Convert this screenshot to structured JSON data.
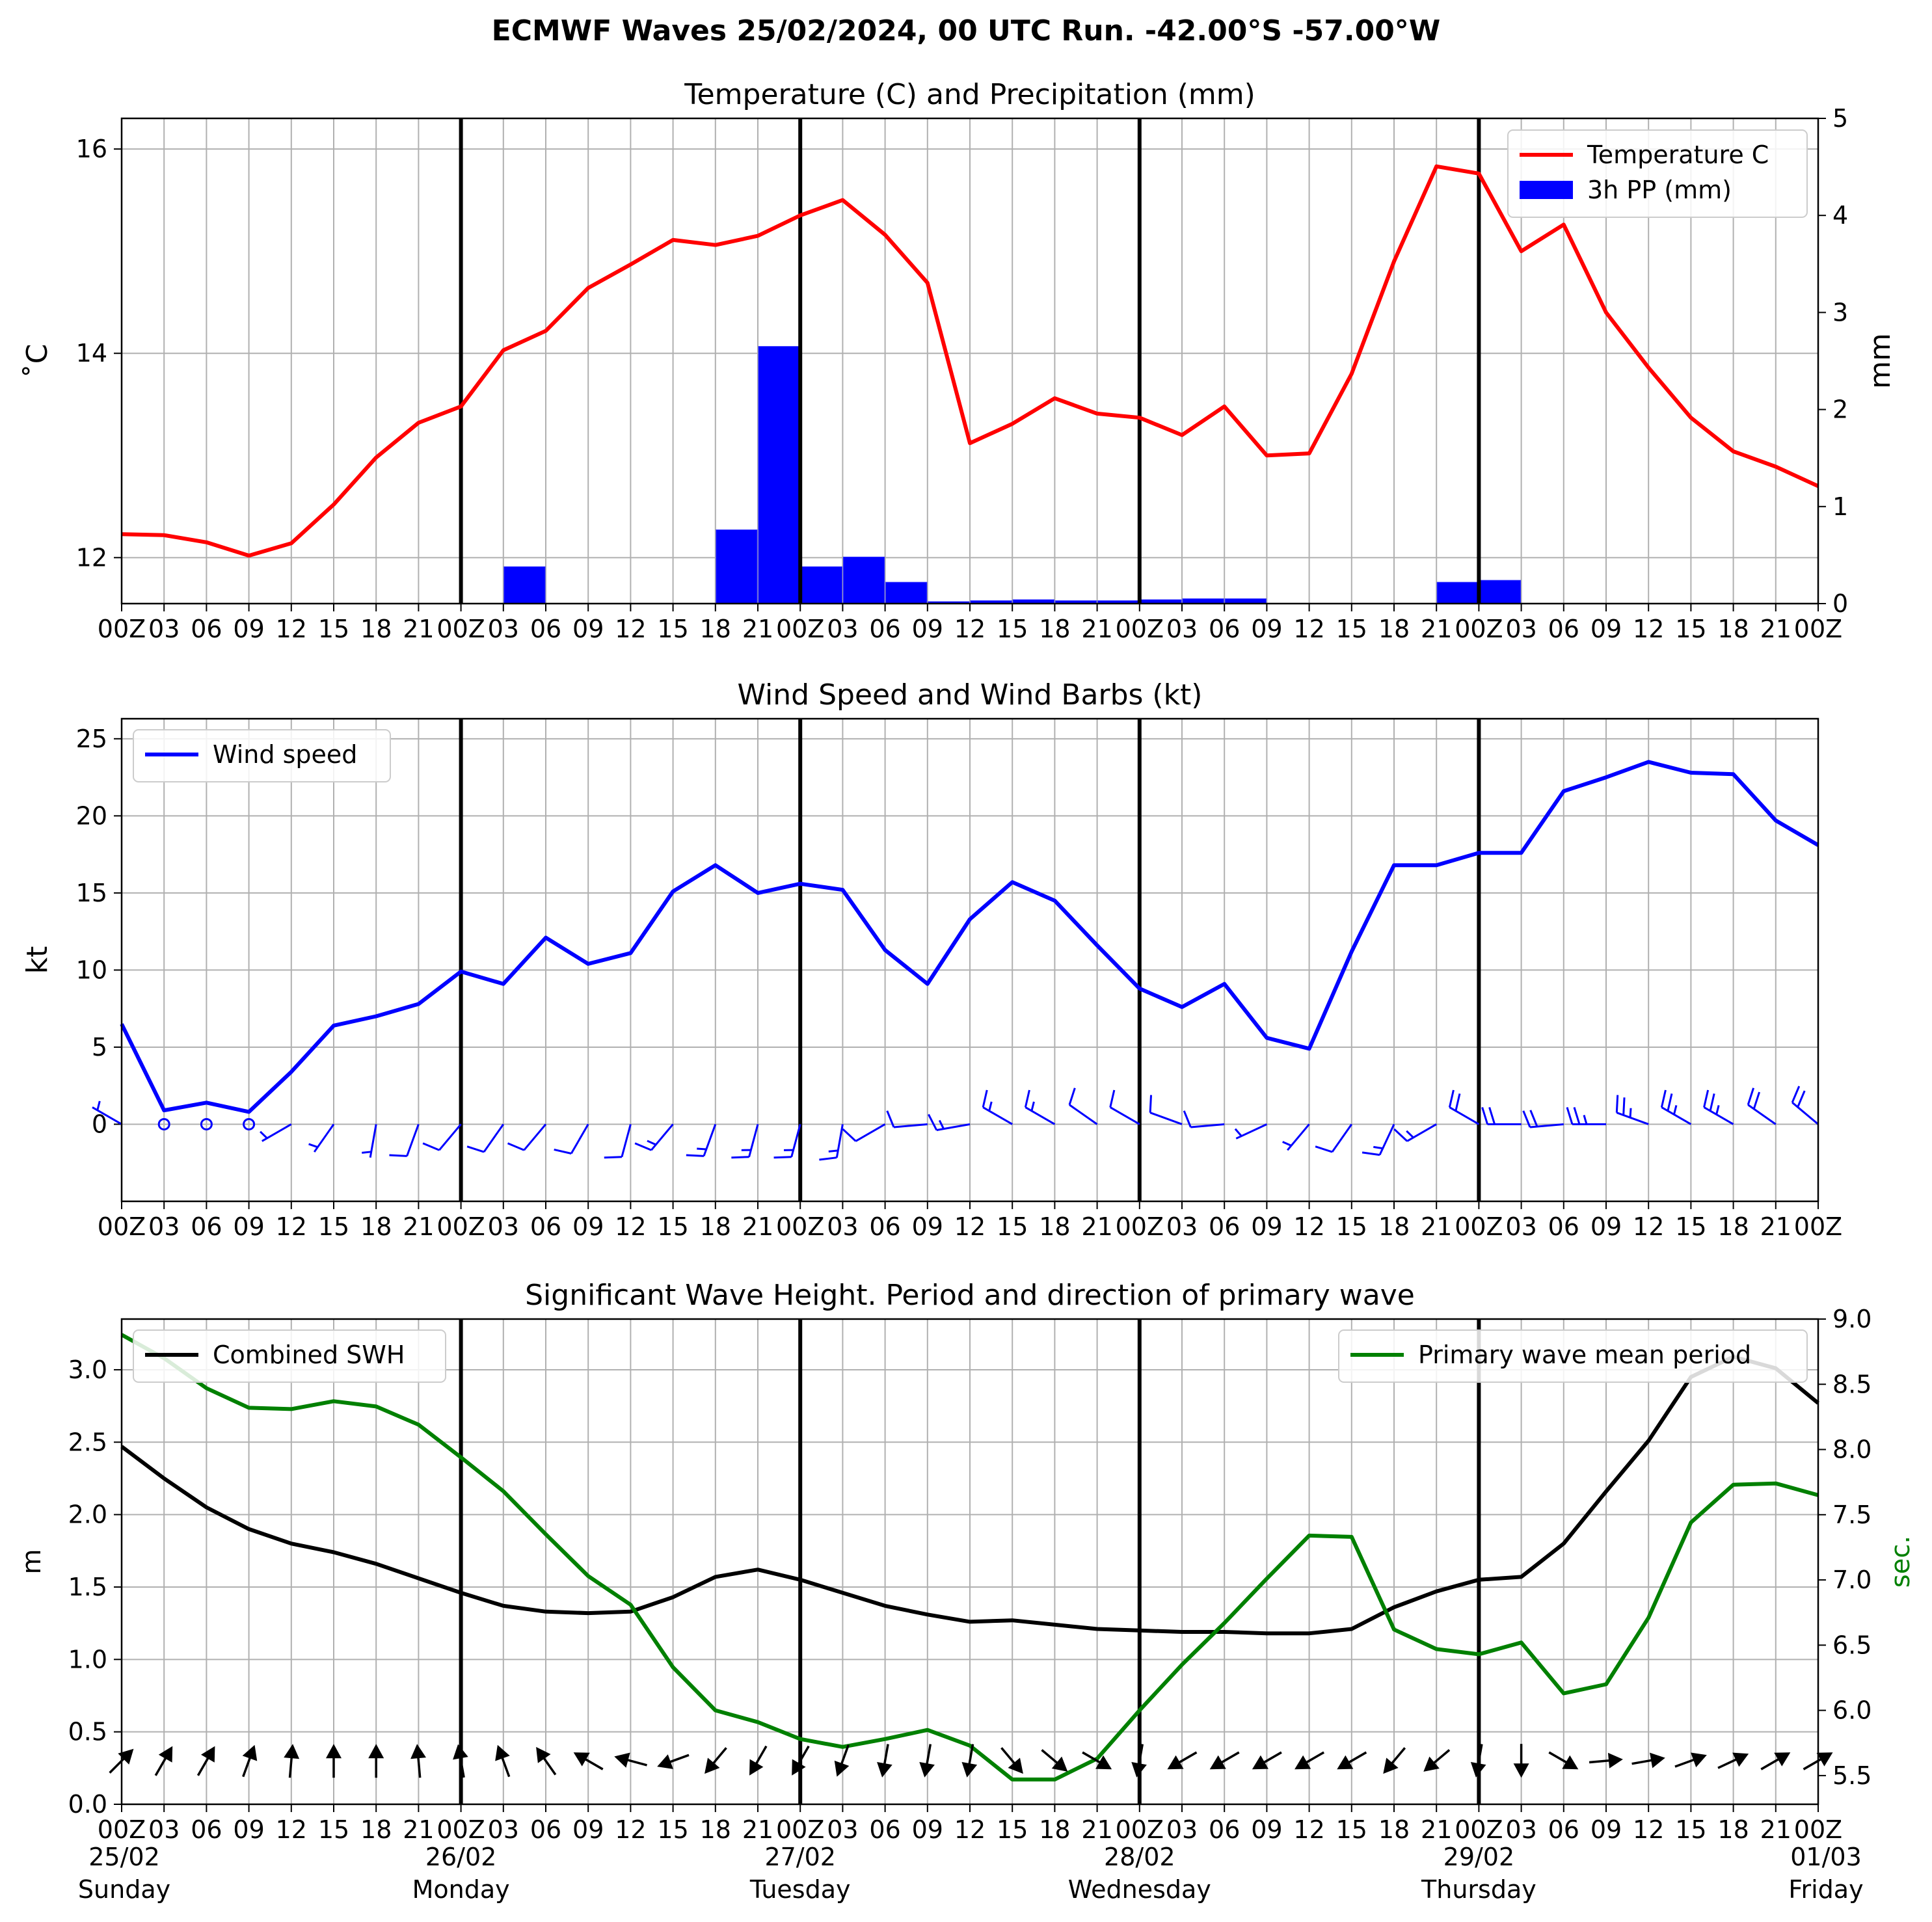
{
  "header": {
    "title": "ECMWF Waves 25/02/2024, 00 UTC Run. -42.00°S -57.00°W"
  },
  "colors": {
    "temperature": "#ff0000",
    "precipitation": "#0000ff",
    "wind": "#0000ff",
    "swh": "#000000",
    "period": "#008000",
    "grid": "#b0b0b0",
    "day_line": "#000000"
  },
  "time_axis": {
    "tick_labels": [
      "00Z",
      "03",
      "06",
      "09",
      "12",
      "15",
      "18",
      "21",
      "00Z",
      "03",
      "06",
      "09",
      "12",
      "15",
      "18",
      "21",
      "00Z",
      "03",
      "06",
      "09",
      "12",
      "15",
      "18",
      "21",
      "00Z",
      "03",
      "06",
      "09",
      "12",
      "15",
      "18",
      "21",
      "00Z",
      "03",
      "06",
      "09",
      "12",
      "15",
      "18",
      "21",
      "00Z"
    ],
    "day_boundaries": [
      8,
      16,
      24,
      32
    ],
    "dates": [
      {
        "date": "25/02",
        "day": "Sunday"
      },
      {
        "date": "26/02",
        "day": "Monday"
      },
      {
        "date": "27/02",
        "day": "Tuesday"
      },
      {
        "date": "28/02",
        "day": "Wednesday"
      },
      {
        "date": "29/02",
        "day": "Thursday"
      },
      {
        "date": "01/03",
        "day": "Friday"
      }
    ]
  },
  "chart_data": [
    {
      "type": "line",
      "title": "Temperature (C) and Precipitation (mm)",
      "ylabel": "$^\\circ$C",
      "ylabel_display": "˚C",
      "y2label": "mm",
      "ylim": [
        11.55,
        16.3
      ],
      "y2lim": [
        0,
        5
      ],
      "yticks": [
        12,
        14,
        16
      ],
      "y2ticks": [
        0,
        1,
        2,
        3,
        4,
        5
      ],
      "legend_position": "top-right",
      "grid": true,
      "series": [
        {
          "name": "Temperature C",
          "kind": "line",
          "axis": "left",
          "values": [
            12.23,
            12.22,
            12.15,
            12.02,
            12.14,
            12.52,
            12.98,
            13.32,
            13.48,
            14.03,
            14.22,
            14.64,
            14.87,
            15.11,
            15.06,
            15.15,
            15.35,
            15.5,
            15.16,
            14.69,
            13.12,
            13.31,
            13.56,
            13.41,
            13.37,
            13.2,
            13.48,
            13.0,
            13.02,
            13.8,
            14.9,
            15.83,
            15.76,
            15.0,
            15.26,
            14.4,
            13.86,
            13.37,
            13.04,
            12.89,
            12.7
          ]
        },
        {
          "name": "3h PP (mm)",
          "kind": "bar",
          "axis": "right",
          "values": [
            0,
            0,
            0,
            0,
            0,
            0,
            0,
            0,
            0,
            0.38,
            0,
            0,
            0,
            0,
            0.76,
            2.65,
            0.38,
            0.48,
            0.22,
            0.02,
            0.03,
            0.04,
            0.03,
            0.03,
            0.04,
            0.05,
            0.05,
            0,
            0,
            0,
            0,
            0.22,
            0.24,
            0,
            0,
            0,
            0,
            0,
            0,
            0
          ]
        }
      ]
    },
    {
      "type": "line",
      "title": "Wind Speed and Wind Barbs (kt)",
      "ylabel": "kt",
      "ylim": [
        -5,
        26.3
      ],
      "yticks": [
        0,
        5,
        10,
        15,
        20,
        25
      ],
      "legend_position": "top-left",
      "grid": true,
      "series": [
        {
          "name": "Wind speed",
          "kind": "line",
          "values": [
            6.5,
            0.9,
            1.4,
            0.8,
            3.4,
            6.4,
            7.0,
            7.8,
            9.9,
            9.1,
            12.1,
            10.4,
            11.1,
            15.1,
            16.8,
            15.0,
            15.6,
            15.2,
            11.3,
            9.1,
            13.3,
            15.7,
            14.5,
            11.6,
            8.8,
            7.6,
            9.1,
            5.6,
            4.9,
            11.2,
            16.8,
            16.8,
            17.6,
            17.6,
            21.6,
            22.5,
            23.5,
            22.8,
            22.7,
            19.7,
            18.1
          ]
        },
        {
          "name": "Wind barbs",
          "kind": "barb",
          "values": [
            6.5,
            0.9,
            1.4,
            0.8,
            3.4,
            6.4,
            7.0,
            7.8,
            9.9,
            9.1,
            12.1,
            10.4,
            11.1,
            15.1,
            16.8,
            15.0,
            15.6,
            15.2,
            11.3,
            9.1,
            13.3,
            15.7,
            14.5,
            11.6,
            8.8,
            7.6,
            9.1,
            5.6,
            4.9,
            11.2,
            16.8,
            16.8,
            17.6,
            17.6,
            21.6,
            22.5,
            23.5,
            22.8,
            22.7,
            19.7,
            18.1
          ],
          "directions_deg": [
            300,
            270,
            270,
            270,
            240,
            215,
            190,
            200,
            220,
            215,
            220,
            210,
            195,
            220,
            200,
            195,
            195,
            190,
            240,
            265,
            260,
            300,
            300,
            305,
            300,
            290,
            265,
            245,
            220,
            215,
            205,
            240,
            300,
            270,
            265,
            270,
            290,
            300,
            300,
            305,
            310
          ]
        }
      ]
    },
    {
      "type": "line",
      "title": "Significant Wave Height. Period and direction of primary wave",
      "ylabel": "m",
      "y2label": "sec.",
      "ylim": [
        0,
        3.35
      ],
      "y2lim": [
        5.28,
        9.0
      ],
      "yticks": [
        0.0,
        0.5,
        1.0,
        1.5,
        2.0,
        2.5,
        3.0
      ],
      "y2ticks": [
        5.5,
        6.0,
        6.5,
        7.0,
        7.5,
        8.0,
        8.5,
        9.0
      ],
      "grid": true,
      "series": [
        {
          "name": "Combined SWH",
          "kind": "line",
          "axis": "left",
          "legend_position": "top-left",
          "values": [
            2.47,
            2.25,
            2.05,
            1.9,
            1.8,
            1.74,
            1.66,
            1.56,
            1.46,
            1.37,
            1.33,
            1.32,
            1.33,
            1.43,
            1.57,
            1.62,
            1.55,
            1.46,
            1.37,
            1.31,
            1.26,
            1.27,
            1.24,
            1.21,
            1.2,
            1.19,
            1.19,
            1.18,
            1.18,
            1.21,
            1.36,
            1.47,
            1.55,
            1.57,
            1.8,
            2.16,
            2.51,
            2.95,
            3.09,
            3.01,
            2.77
          ]
        },
        {
          "name": "Primary wave mean period",
          "kind": "line",
          "axis": "right",
          "legend_position": "top-right",
          "values": [
            8.88,
            8.7,
            8.47,
            8.32,
            8.31,
            8.37,
            8.33,
            8.19,
            7.94,
            7.68,
            7.35,
            7.03,
            6.81,
            6.33,
            6.0,
            5.91,
            5.78,
            5.72,
            5.78,
            5.85,
            5.73,
            5.47,
            5.47,
            5.63,
            6.0,
            6.35,
            6.67,
            7.01,
            7.34,
            7.33,
            6.62,
            6.47,
            6.43,
            6.52,
            6.13,
            6.2,
            6.71,
            7.44,
            7.73,
            7.74,
            7.65
          ]
        },
        {
          "name": "Primary wave direction",
          "kind": "arrow",
          "directions_deg": [
            225,
            210,
            210,
            200,
            185,
            180,
            180,
            175,
            170,
            160,
            145,
            120,
            105,
            70,
            40,
            30,
            30,
            20,
            10,
            10,
            10,
            320,
            310,
            300,
            10,
            60,
            60,
            60,
            60,
            60,
            40,
            50,
            10,
            360,
            300,
            265,
            260,
            250,
            245,
            240,
            240
          ]
        }
      ]
    }
  ]
}
